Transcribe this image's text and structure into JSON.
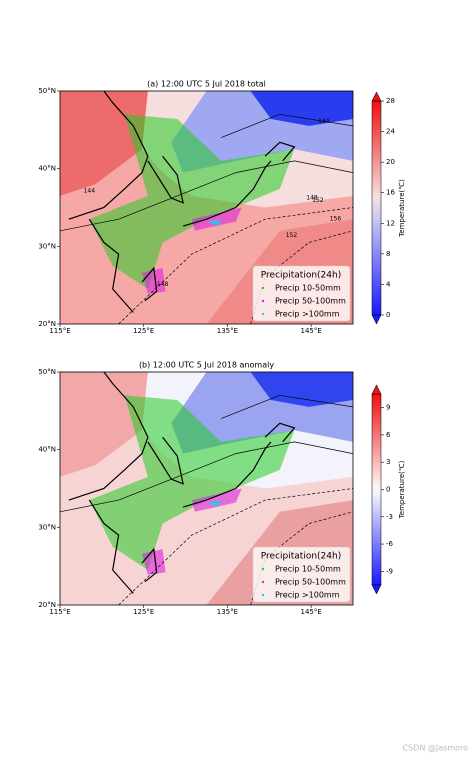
{
  "panels": [
    {
      "title": "(a) 12:00 UTC 5 Jul 2018 total",
      "lon_lim": [
        115,
        150
      ],
      "lat_lim": [
        20,
        50
      ],
      "lon_ticks": [
        {
          "value": 115,
          "label": "115°E"
        },
        {
          "value": 125,
          "label": "125°E"
        },
        {
          "value": 135,
          "label": "135°E"
        },
        {
          "value": 145,
          "label": "145°E"
        }
      ],
      "lat_ticks": [
        {
          "value": 20,
          "label": "20°N"
        },
        {
          "value": 30,
          "label": "30°N"
        },
        {
          "value": 40,
          "label": "40°N"
        },
        {
          "value": 50,
          "label": "50°N"
        }
      ],
      "colorbar": {
        "label": "Temperature(℃)",
        "lim": [
          0,
          28
        ],
        "ticks": [
          0,
          4,
          8,
          12,
          16,
          20,
          24,
          28
        ]
      },
      "contour_labels": [
        "144",
        "144",
        "148",
        "152",
        "156",
        "152",
        "148"
      ],
      "legend": {
        "title": "Precipitation(24h)",
        "items": [
          {
            "name": "Precip 10-50mm",
            "color": "#22cc22"
          },
          {
            "name": "Precip 50-100mm",
            "color": "#dd22dd"
          },
          {
            "name": "Precip >100mm",
            "color": "#22ccee"
          }
        ]
      }
    },
    {
      "title": "(b) 12:00 UTC 5 Jul 2018 anomaly",
      "lon_lim": [
        115,
        150
      ],
      "lat_lim": [
        20,
        50
      ],
      "lon_ticks": [
        {
          "value": 115,
          "label": "115°E"
        },
        {
          "value": 125,
          "label": "125°E"
        },
        {
          "value": 135,
          "label": "135°E"
        },
        {
          "value": 145,
          "label": "145°E"
        }
      ],
      "lat_ticks": [
        {
          "value": 20,
          "label": "20°N"
        },
        {
          "value": 30,
          "label": "30°N"
        },
        {
          "value": 40,
          "label": "40°N"
        },
        {
          "value": 50,
          "label": "50°N"
        }
      ],
      "colorbar": {
        "label": "Temperature(℃)",
        "lim": [
          -10.5,
          10.5
        ],
        "ticks": [
          -9,
          -6,
          -3,
          0,
          3,
          6,
          9
        ]
      },
      "contour_labels": [],
      "legend": {
        "title": "Precipitation(24h)",
        "items": [
          {
            "name": "Precip 10-50mm",
            "color": "#22cc22"
          },
          {
            "name": "Precip 50-100mm",
            "color": "#dd22dd"
          },
          {
            "name": "Precip >100mm",
            "color": "#22ccee"
          }
        ]
      }
    }
  ],
  "watermark": "CSDN @Jasmoro"
}
